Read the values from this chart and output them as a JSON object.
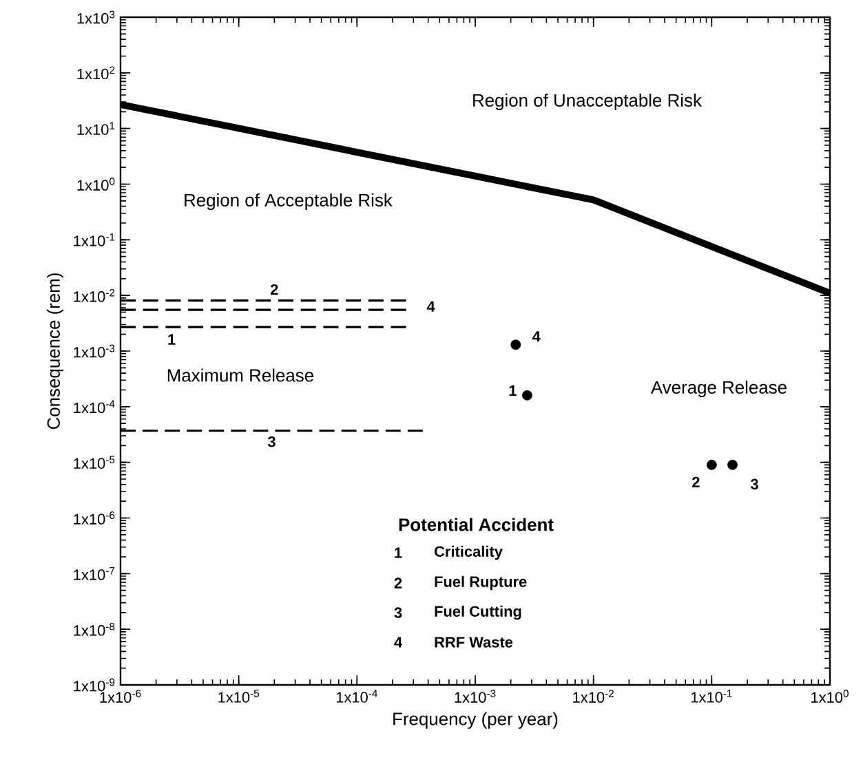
{
  "chart_data": {
    "type": "line",
    "log": "xy",
    "xlabel": "Frequency     (per year)",
    "ylabel": "Consequence     (rem)",
    "xlim": [
      1e-06,
      1
    ],
    "ylim": [
      1e-09,
      1000
    ],
    "xticks": [
      {
        "value": 1e-06,
        "label": "1x10$^{-6}$"
      },
      {
        "value": 1e-05,
        "label": "1x10$^{-5}$"
      },
      {
        "value": 0.0001,
        "label": "1x10$^{-4}$"
      },
      {
        "value": 0.001,
        "label": "1x10$^{-3}$"
      },
      {
        "value": 0.01,
        "label": "1x10$^{-2}$"
      },
      {
        "value": 0.1,
        "label": "1x10$^{-1}$"
      },
      {
        "value": 1,
        "label": "1x10$^{0}$"
      }
    ],
    "yticks": [
      {
        "value": 1e-09,
        "label": "1x10$^{-9}$"
      },
      {
        "value": 1e-08,
        "label": "1x10$^{-8}$"
      },
      {
        "value": 1e-07,
        "label": "1x10$^{-7}$"
      },
      {
        "value": 1e-06,
        "label": "1x10$^{-6}$"
      },
      {
        "value": 1e-05,
        "label": "1x10$^{-5}$"
      },
      {
        "value": 0.0001,
        "label": "1x10$^{-4}$"
      },
      {
        "value": 0.001,
        "label": "1x10$^{-3}$"
      },
      {
        "value": 0.01,
        "label": "1x10$^{-2}$"
      },
      {
        "value": 0.1,
        "label": "1x10$^{-1}$"
      },
      {
        "value": 1,
        "label": "1x10$^{0}$"
      },
      {
        "value": 10,
        "label": "1x10$^{1}$"
      },
      {
        "value": 100,
        "label": "1x10$^{2}$"
      },
      {
        "value": 1000,
        "label": "1x10$^{3}$"
      }
    ],
    "series": [
      {
        "line_style": "solid",
        "color": "#000000",
        "x": [
          1e-06,
          0.01,
          1
        ],
        "values": [
          27,
          0.52,
          0.011
        ]
      },
      {
        "line_style": "dashed",
        "color": "#000000",
        "x": [
          1e-06,
          0.00026
        ],
        "values": [
          0.0027,
          0.0027
        ]
      },
      {
        "line_style": "dashed",
        "color": "#000000",
        "x": [
          1e-06,
          0.00026
        ],
        "values": [
          0.0081,
          0.0081
        ]
      },
      {
        "line_style": "dashed",
        "color": "#000000",
        "x": [
          1e-06,
          0.00036
        ],
        "values": [
          3.7e-05,
          3.7e-05
        ]
      },
      {
        "line_style": "dashed",
        "color": "#000000",
        "x": [
          1e-06,
          0.00026
        ],
        "values": [
          0.0055,
          0.0055
        ]
      },
      {
        "type": "scatter",
        "marker": "circle",
        "color": "#000000",
        "x": [
          0.0022,
          0.00275,
          0.1,
          0.15
        ],
        "values": [
          0.0013,
          0.00016,
          9e-06,
          9e-06
        ]
      }
    ],
    "annotations": [
      "Region of Unacceptable Risk",
      "Region of Acceptable Risk",
      "Maximum Release",
      "Average Release",
      "Potential Accident",
      "1",
      "Criticality",
      "2",
      "Fuel Rupture",
      "3",
      "Fuel Cutting",
      "4",
      "RRF Waste",
      {
        "text": "1",
        "x": 2.7e-06,
        "y": 0.0027
      },
      {
        "text": "2",
        "x": 2e-05,
        "y": 0.0081
      },
      {
        "text": "3",
        "x": 1.9e-05,
        "y": 3.7e-05
      },
      {
        "text": "4",
        "x": 0.00026,
        "y": 0.0055
      },
      {
        "text": "4",
        "x": 0.0022,
        "y": 0.0013
      },
      {
        "text": "1",
        "x": 0.00275,
        "y": 0.00016
      },
      {
        "text": "2",
        "x": 0.1,
        "y": 9e-06
      },
      {
        "text": "3",
        "x": 0.15,
        "y": 9e-06
      }
    ]
  }
}
